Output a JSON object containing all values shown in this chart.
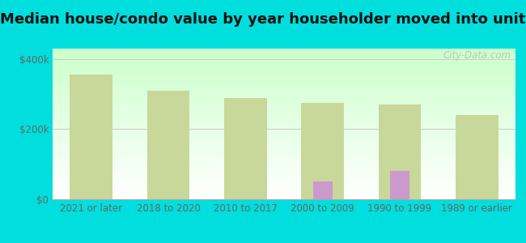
{
  "title": "Median house/condo value by year householder moved into unit",
  "categories": [
    "2021 or later",
    "2018 to 2020",
    "2010 to 2017",
    "2000 to 2009",
    "1990 to 1999",
    "1989 or earlier"
  ],
  "noma_values": [
    null,
    null,
    null,
    50000,
    80000,
    null
  ],
  "florida_values": [
    355000,
    310000,
    290000,
    275000,
    270000,
    240000
  ],
  "noma_color": "#cc99cc",
  "florida_color": "#c8d89a",
  "background_color": "#00dede",
  "plot_bg_top": "#ffffff",
  "plot_bg_bottom": "#ccffcc",
  "ylabel_ticks": [
    "$0",
    "$200k",
    "$400k"
  ],
  "ytick_values": [
    0,
    200000,
    400000
  ],
  "ylim": [
    0,
    430000
  ],
  "florida_bar_width": 0.55,
  "noma_bar_width": 0.25,
  "title_fontsize": 13,
  "tick_fontsize": 8.5,
  "legend_fontsize": 10,
  "watermark_text": "City-Data.com",
  "watermark_color": "#bbbbbb"
}
